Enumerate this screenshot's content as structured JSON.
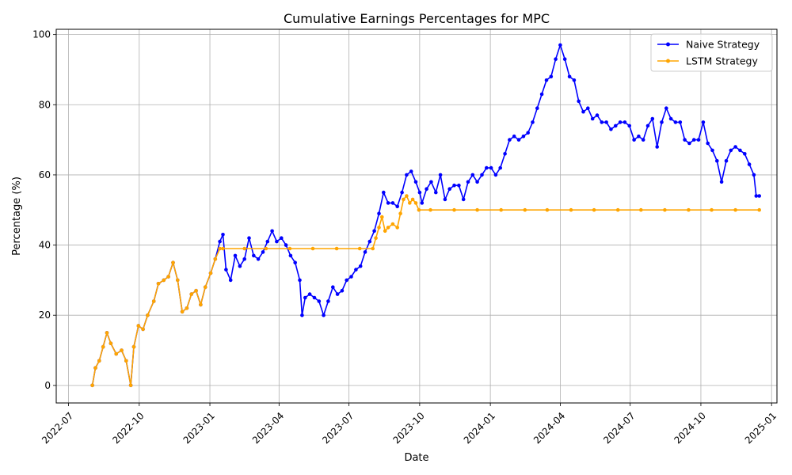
{
  "chart_data": {
    "type": "line",
    "title": "Cumulative Earnings Percentages for MPC",
    "xlabel": "Date",
    "ylabel": "Percentage (%)",
    "xlim": [
      "2022-06-15",
      "2025-01-08"
    ],
    "ylim": [
      -5,
      101.5
    ],
    "yticks": [
      0,
      20,
      40,
      60,
      80,
      100
    ],
    "xticks": [
      "2022-07",
      "2022-10",
      "2023-01",
      "2023-04",
      "2023-07",
      "2023-10",
      "2024-01",
      "2024-04",
      "2024-07",
      "2024-10",
      "2025-01"
    ],
    "grid": true,
    "legend_position": "top-right",
    "series": [
      {
        "name": "Naive Strategy",
        "color": "#0000ff",
        "points": [
          [
            "2022-08-01",
            0
          ],
          [
            "2022-08-05",
            5
          ],
          [
            "2022-08-10",
            7
          ],
          [
            "2022-08-15",
            11
          ],
          [
            "2022-08-20",
            15
          ],
          [
            "2022-08-25",
            12
          ],
          [
            "2022-09-01",
            9
          ],
          [
            "2022-09-08",
            10
          ],
          [
            "2022-09-14",
            7
          ],
          [
            "2022-09-20",
            0
          ],
          [
            "2022-09-24",
            11
          ],
          [
            "2022-09-30",
            17
          ],
          [
            "2022-10-06",
            16
          ],
          [
            "2022-10-12",
            20
          ],
          [
            "2022-10-20",
            24
          ],
          [
            "2022-10-26",
            29
          ],
          [
            "2022-11-02",
            30
          ],
          [
            "2022-11-08",
            31
          ],
          [
            "2022-11-14",
            35
          ],
          [
            "2022-11-20",
            30
          ],
          [
            "2022-11-26",
            21
          ],
          [
            "2022-12-02",
            22
          ],
          [
            "2022-12-08",
            26
          ],
          [
            "2022-12-14",
            27
          ],
          [
            "2022-12-20",
            23
          ],
          [
            "2022-12-26",
            28
          ],
          [
            "2023-01-02",
            32
          ],
          [
            "2023-01-08",
            36
          ],
          [
            "2023-01-14",
            41
          ],
          [
            "2023-01-18",
            43
          ],
          [
            "2023-01-22",
            33
          ],
          [
            "2023-01-28",
            30
          ],
          [
            "2023-02-03",
            37
          ],
          [
            "2023-02-09",
            34
          ],
          [
            "2023-02-15",
            36
          ],
          [
            "2023-02-21",
            42
          ],
          [
            "2023-02-27",
            37
          ],
          [
            "2023-03-05",
            36
          ],
          [
            "2023-03-11",
            38
          ],
          [
            "2023-03-17",
            41
          ],
          [
            "2023-03-23",
            44
          ],
          [
            "2023-03-29",
            41
          ],
          [
            "2023-04-04",
            42
          ],
          [
            "2023-04-10",
            40
          ],
          [
            "2023-04-16",
            37
          ],
          [
            "2023-04-22",
            35
          ],
          [
            "2023-04-28",
            30
          ],
          [
            "2023-05-01",
            20
          ],
          [
            "2023-05-05",
            25
          ],
          [
            "2023-05-11",
            26
          ],
          [
            "2023-05-17",
            25
          ],
          [
            "2023-05-23",
            24
          ],
          [
            "2023-05-29",
            20
          ],
          [
            "2023-06-04",
            24
          ],
          [
            "2023-06-10",
            28
          ],
          [
            "2023-06-16",
            26
          ],
          [
            "2023-06-22",
            27
          ],
          [
            "2023-06-28",
            30
          ],
          [
            "2023-07-04",
            31
          ],
          [
            "2023-07-10",
            33
          ],
          [
            "2023-07-16",
            34
          ],
          [
            "2023-07-22",
            38
          ],
          [
            "2023-07-28",
            41
          ],
          [
            "2023-08-03",
            44
          ],
          [
            "2023-08-09",
            49
          ],
          [
            "2023-08-15",
            55
          ],
          [
            "2023-08-21",
            52
          ],
          [
            "2023-08-27",
            52
          ],
          [
            "2023-09-02",
            51
          ],
          [
            "2023-09-08",
            55
          ],
          [
            "2023-09-14",
            60
          ],
          [
            "2023-09-20",
            61
          ],
          [
            "2023-09-26",
            58
          ],
          [
            "2023-10-01",
            55
          ],
          [
            "2023-10-04",
            52
          ],
          [
            "2023-10-10",
            56
          ],
          [
            "2023-10-16",
            58
          ],
          [
            "2023-10-22",
            55
          ],
          [
            "2023-10-28",
            60
          ],
          [
            "2023-11-03",
            53
          ],
          [
            "2023-11-09",
            56
          ],
          [
            "2023-11-15",
            57
          ],
          [
            "2023-11-21",
            57
          ],
          [
            "2023-11-27",
            53
          ],
          [
            "2023-12-03",
            58
          ],
          [
            "2023-12-09",
            60
          ],
          [
            "2023-12-15",
            58
          ],
          [
            "2023-12-21",
            60
          ],
          [
            "2023-12-27",
            62
          ],
          [
            "2024-01-02",
            62
          ],
          [
            "2024-01-08",
            60
          ],
          [
            "2024-01-14",
            62
          ],
          [
            "2024-01-20",
            66
          ],
          [
            "2024-01-26",
            70
          ],
          [
            "2024-02-01",
            71
          ],
          [
            "2024-02-07",
            70
          ],
          [
            "2024-02-13",
            71
          ],
          [
            "2024-02-19",
            72
          ],
          [
            "2024-02-25",
            75
          ],
          [
            "2024-03-02",
            79
          ],
          [
            "2024-03-08",
            83
          ],
          [
            "2024-03-14",
            87
          ],
          [
            "2024-03-20",
            88
          ],
          [
            "2024-03-26",
            93
          ],
          [
            "2024-04-01",
            97
          ],
          [
            "2024-04-07",
            93
          ],
          [
            "2024-04-13",
            88
          ],
          [
            "2024-04-19",
            87
          ],
          [
            "2024-04-25",
            81
          ],
          [
            "2024-05-01",
            78
          ],
          [
            "2024-05-07",
            79
          ],
          [
            "2024-05-13",
            76
          ],
          [
            "2024-05-19",
            77
          ],
          [
            "2024-05-25",
            75
          ],
          [
            "2024-05-31",
            75
          ],
          [
            "2024-06-06",
            73
          ],
          [
            "2024-06-12",
            74
          ],
          [
            "2024-06-18",
            75
          ],
          [
            "2024-06-24",
            75
          ],
          [
            "2024-06-30",
            74
          ],
          [
            "2024-07-06",
            70
          ],
          [
            "2024-07-12",
            71
          ],
          [
            "2024-07-18",
            70
          ],
          [
            "2024-07-24",
            74
          ],
          [
            "2024-07-30",
            76
          ],
          [
            "2024-08-05",
            68
          ],
          [
            "2024-08-11",
            75
          ],
          [
            "2024-08-17",
            79
          ],
          [
            "2024-08-23",
            76
          ],
          [
            "2024-08-29",
            75
          ],
          [
            "2024-09-04",
            75
          ],
          [
            "2024-09-10",
            70
          ],
          [
            "2024-09-16",
            69
          ],
          [
            "2024-09-22",
            70
          ],
          [
            "2024-09-28",
            70
          ],
          [
            "2024-10-04",
            75
          ],
          [
            "2024-10-10",
            69
          ],
          [
            "2024-10-16",
            67
          ],
          [
            "2024-10-22",
            64
          ],
          [
            "2024-10-28",
            58
          ],
          [
            "2024-11-03",
            64
          ],
          [
            "2024-11-09",
            67
          ],
          [
            "2024-11-15",
            68
          ],
          [
            "2024-11-21",
            67
          ],
          [
            "2024-11-27",
            66
          ],
          [
            "2024-12-03",
            63
          ],
          [
            "2024-12-09",
            60
          ],
          [
            "2024-12-12",
            54
          ],
          [
            "2024-12-16",
            54
          ]
        ]
      },
      {
        "name": "LSTM Strategy",
        "color": "#ffa500",
        "points": [
          [
            "2022-08-01",
            0
          ],
          [
            "2022-08-05",
            5
          ],
          [
            "2022-08-10",
            7
          ],
          [
            "2022-08-15",
            11
          ],
          [
            "2022-08-20",
            15
          ],
          [
            "2022-08-25",
            12
          ],
          [
            "2022-09-01",
            9
          ],
          [
            "2022-09-08",
            10
          ],
          [
            "2022-09-14",
            7
          ],
          [
            "2022-09-20",
            0
          ],
          [
            "2022-09-24",
            11
          ],
          [
            "2022-09-30",
            17
          ],
          [
            "2022-10-06",
            16
          ],
          [
            "2022-10-12",
            20
          ],
          [
            "2022-10-20",
            24
          ],
          [
            "2022-10-26",
            29
          ],
          [
            "2022-11-02",
            30
          ],
          [
            "2022-11-08",
            31
          ],
          [
            "2022-11-14",
            35
          ],
          [
            "2022-11-20",
            30
          ],
          [
            "2022-11-26",
            21
          ],
          [
            "2022-12-02",
            22
          ],
          [
            "2022-12-08",
            26
          ],
          [
            "2022-12-14",
            27
          ],
          [
            "2022-12-20",
            23
          ],
          [
            "2022-12-26",
            28
          ],
          [
            "2023-01-02",
            32
          ],
          [
            "2023-01-08",
            36
          ],
          [
            "2023-01-14",
            39
          ],
          [
            "2023-01-18",
            39
          ],
          [
            "2023-02-15",
            39
          ],
          [
            "2023-03-15",
            39
          ],
          [
            "2023-04-15",
            39
          ],
          [
            "2023-05-15",
            39
          ],
          [
            "2023-06-15",
            39
          ],
          [
            "2023-07-15",
            39
          ],
          [
            "2023-08-01",
            39
          ],
          [
            "2023-08-05",
            42
          ],
          [
            "2023-08-09",
            45
          ],
          [
            "2023-08-13",
            48
          ],
          [
            "2023-08-17",
            44
          ],
          [
            "2023-08-21",
            45
          ],
          [
            "2023-08-27",
            46
          ],
          [
            "2023-09-02",
            45
          ],
          [
            "2023-09-06",
            49
          ],
          [
            "2023-09-10",
            53
          ],
          [
            "2023-09-14",
            54
          ],
          [
            "2023-09-18",
            52
          ],
          [
            "2023-09-22",
            53
          ],
          [
            "2023-09-26",
            52
          ],
          [
            "2023-09-30",
            50
          ],
          [
            "2023-10-15",
            50
          ],
          [
            "2023-11-15",
            50
          ],
          [
            "2023-12-15",
            50
          ],
          [
            "2024-01-15",
            50
          ],
          [
            "2024-02-15",
            50
          ],
          [
            "2024-03-15",
            50
          ],
          [
            "2024-04-15",
            50
          ],
          [
            "2024-05-15",
            50
          ],
          [
            "2024-06-15",
            50
          ],
          [
            "2024-07-15",
            50
          ],
          [
            "2024-08-15",
            50
          ],
          [
            "2024-09-15",
            50
          ],
          [
            "2024-10-15",
            50
          ],
          [
            "2024-11-15",
            50
          ],
          [
            "2024-12-16",
            50
          ]
        ]
      }
    ]
  }
}
